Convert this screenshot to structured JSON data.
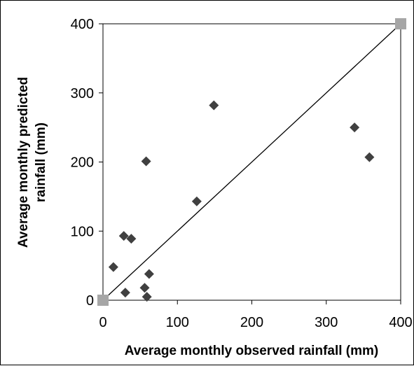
{
  "chart_data": {
    "type": "scatter",
    "title": "",
    "xlabel": "Average monthly observed rainfall (mm)",
    "ylabel_lines": [
      "Average monthly predicted",
      "rainfall (mm)"
    ],
    "xlim": [
      0,
      400
    ],
    "ylim": [
      0,
      400
    ],
    "xticks": [
      "0",
      "100",
      "200",
      "300",
      "400"
    ],
    "yticks": [
      "0",
      "100",
      "200",
      "300",
      "400"
    ],
    "grid": false,
    "legend": "none",
    "colors": {
      "points": "#404040",
      "reference_line": "#000000",
      "endpoint_markers": "#a6a6a6"
    },
    "series": [
      {
        "marker": "diamond",
        "points": [
          {
            "x": 14,
            "y": 48
          },
          {
            "x": 28,
            "y": 93
          },
          {
            "x": 30,
            "y": 11
          },
          {
            "x": 38,
            "y": 89
          },
          {
            "x": 56,
            "y": 18
          },
          {
            "x": 58,
            "y": 201
          },
          {
            "x": 59,
            "y": 5
          },
          {
            "x": 62,
            "y": 38
          },
          {
            "x": 126,
            "y": 143
          },
          {
            "x": 149,
            "y": 282
          },
          {
            "x": 338,
            "y": 250
          },
          {
            "x": 358,
            "y": 207
          }
        ]
      }
    ],
    "reference_line": {
      "from": {
        "x": 0,
        "y": 0
      },
      "to": {
        "x": 400,
        "y": 400
      },
      "end_marker": "square"
    }
  }
}
